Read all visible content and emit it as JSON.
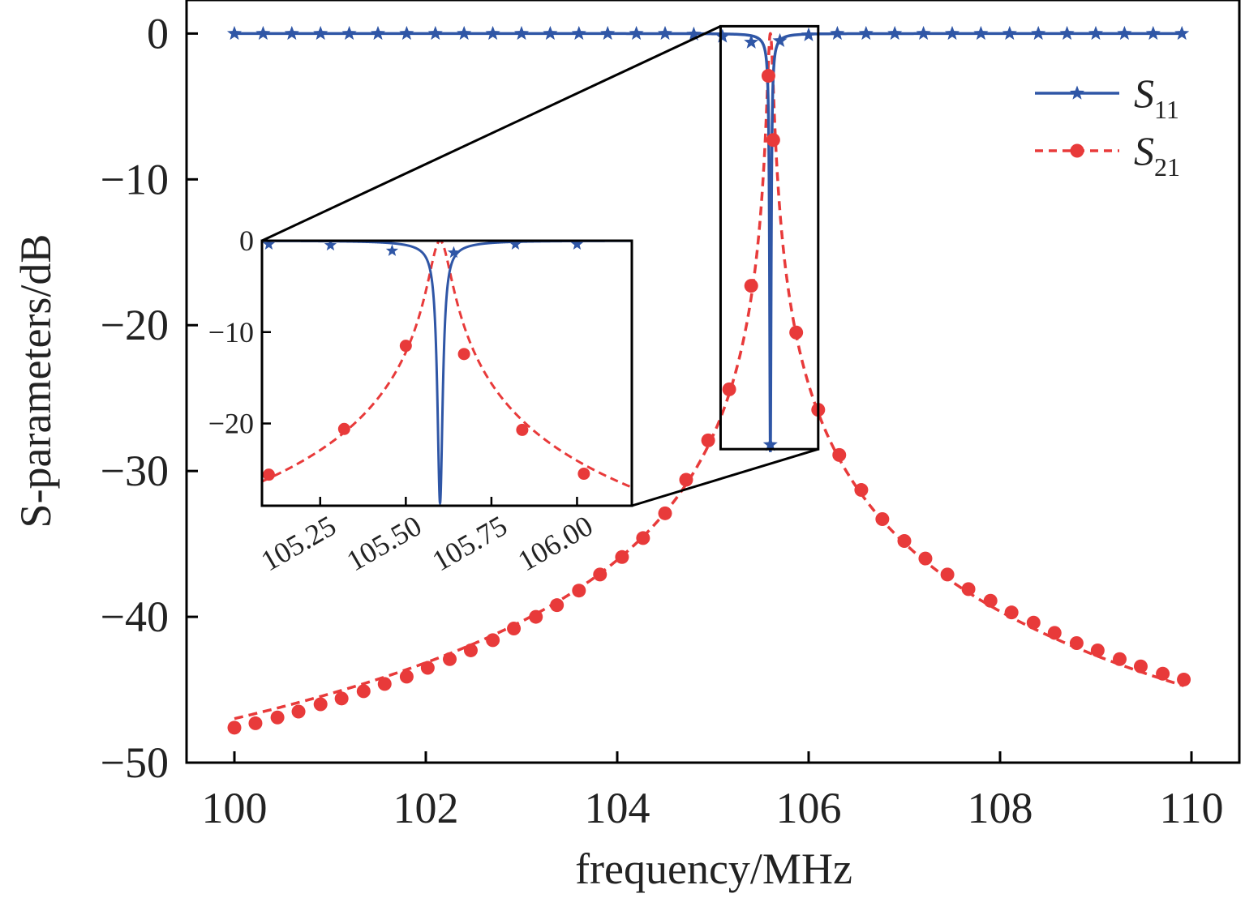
{
  "chart_data": [
    {
      "type": "line",
      "panel": "main",
      "xlabel": "frequency/MHz",
      "ylabel": "S-parameters/dB",
      "xlim": [
        99.5,
        110.5
      ],
      "ylim": [
        -50,
        2.3
      ],
      "xticks": [
        100,
        102,
        104,
        106,
        108,
        110
      ],
      "yticks": [
        0,
        -10,
        -20,
        -30,
        -40,
        -50
      ],
      "xtick_labels": [
        "100",
        "102",
        "104",
        "106",
        "108",
        "110"
      ],
      "ytick_labels": [
        "0",
        "−10",
        "−20",
        "−30",
        "−40",
        "−50"
      ],
      "grid": false,
      "legend_position": "top-right",
      "resonance_mhz": 105.6,
      "series": [
        {
          "name": "S11",
          "name_main": "S",
          "name_sub": "11",
          "line_style": "solid",
          "marker": "star",
          "color": "#2f56a6",
          "x": [
            100,
            100.3,
            100.6,
            100.9,
            101.2,
            101.5,
            101.8,
            102.1,
            102.4,
            102.7,
            103,
            103.3,
            103.6,
            103.9,
            104.2,
            104.5,
            104.8,
            105.1,
            105.4,
            105.6,
            105.7,
            106,
            106.3,
            106.6,
            106.9,
            107.2,
            107.5,
            107.8,
            108.1,
            108.4,
            108.7,
            109,
            109.3,
            109.6,
            109.9
          ],
          "y": [
            0,
            0,
            0,
            0,
            0,
            0,
            0,
            0,
            0,
            0,
            0,
            0,
            0,
            0,
            0,
            0,
            -0.05,
            -0.2,
            -0.6,
            -28.2,
            -0.5,
            -0.1,
            0,
            0,
            0,
            0,
            0,
            0,
            0,
            0,
            0,
            0,
            0,
            0,
            0
          ]
        },
        {
          "name": "S21",
          "name_main": "S",
          "name_sub": "21",
          "line_style": "dashed",
          "marker": "circle",
          "color": "#e83a3a",
          "x": [
            100,
            100.22,
            100.45,
            100.67,
            100.9,
            101.12,
            101.35,
            101.57,
            101.8,
            102.02,
            102.25,
            102.47,
            102.7,
            102.92,
            103.15,
            103.37,
            103.6,
            103.82,
            104.05,
            104.27,
            104.5,
            104.72,
            104.95,
            105.17,
            105.4,
            105.58,
            105.63,
            105.87,
            106.1,
            106.32,
            106.55,
            106.77,
            107,
            107.22,
            107.45,
            107.67,
            107.9,
            108.12,
            108.35,
            108.57,
            108.8,
            109.02,
            109.25,
            109.47,
            109.7,
            109.92
          ],
          "y": [
            -47.6,
            -47.3,
            -46.9,
            -46.5,
            -46,
            -45.6,
            -45.1,
            -44.6,
            -44.1,
            -43.5,
            -42.9,
            -42.3,
            -41.6,
            -40.8,
            -40,
            -39.2,
            -38.2,
            -37.1,
            -35.9,
            -34.6,
            -32.9,
            -30.6,
            -27.9,
            -24.4,
            -17.3,
            -2.9,
            -7.3,
            -20.5,
            -25.8,
            -28.9,
            -31.3,
            -33.3,
            -34.8,
            -36,
            -37.1,
            -38.1,
            -38.9,
            -39.7,
            -40.4,
            -41.1,
            -41.8,
            -42.3,
            -42.9,
            -43.4,
            -43.9,
            -44.3
          ]
        }
      ]
    },
    {
      "type": "line",
      "panel": "inset",
      "zoom_box": {
        "xlim": [
          105.08,
          106.1
        ],
        "ylim": [
          -28.5,
          0.5
        ]
      },
      "xlim": [
        105.08,
        106.16
      ],
      "ylim": [
        -29,
        0
      ],
      "xticks": [
        105.25,
        105.5,
        105.75,
        106.0
      ],
      "yticks": [
        0,
        -10,
        -20
      ],
      "xtick_labels": [
        "105.25",
        "105.50",
        "105.75",
        "106.00"
      ],
      "ytick_labels": [
        "0",
        "−10",
        "−20"
      ],
      "resonance_mhz": 105.6,
      "series": [
        {
          "name": "S11",
          "line_style": "solid",
          "marker": "star",
          "color": "#2f56a6",
          "x": [
            105.1,
            105.28,
            105.46,
            105.64,
            105.82,
            106.0
          ],
          "y": [
            -0.4,
            -0.5,
            -1.1,
            -1.3,
            -0.4,
            -0.4
          ]
        },
        {
          "name": "S21",
          "line_style": "dashed",
          "marker": "circle",
          "color": "#e83a3a",
          "x": [
            105.1,
            105.32,
            105.5,
            105.67,
            105.84,
            106.02
          ],
          "y": [
            -25.6,
            -20.6,
            -11.5,
            -12.4,
            -20.7,
            -25.5
          ]
        }
      ]
    }
  ]
}
